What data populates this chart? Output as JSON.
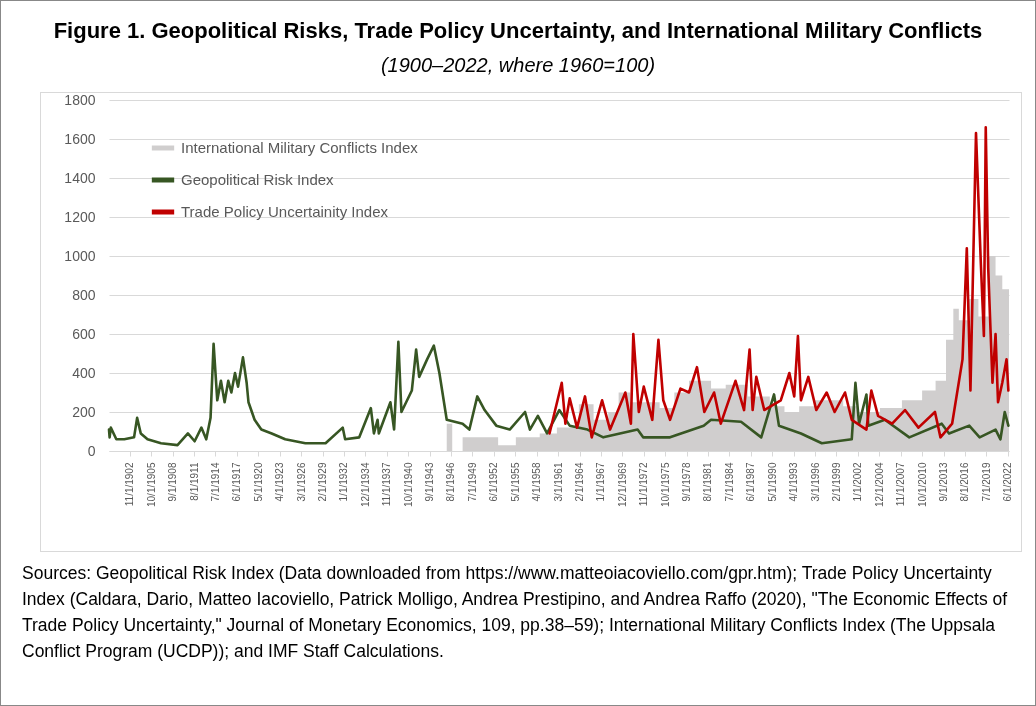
{
  "chart_data": {
    "type": "line",
    "title": "Figure 1. Geopolitical Risks, Trade Policy Uncertainty, and International Military Conflicts",
    "subtitle": "(1900–2022, where 1960=100)",
    "annotations": [
      "Sources: Geopolitical Risk Index (Data downloaded from https://www.matteoiacoviello.com/gpr.htm); Trade Policy Uncertainty Index (Caldara, Dario, Matteo Iacoviello, Patrick Molligo, Andrea Prestipino, and Andrea Raffo (2020), \"The Economic Effects of Trade Policy Uncertainty,\" Journal of Monetary Economics, 109, pp.38–59); International Military Conflicts Index (The Uppsala Conflict Program (UCDP)); and IMF Staff Calculations."
    ],
    "xlim": [
      "1900-01",
      "2022-08"
    ],
    "ylim": [
      0,
      1800
    ],
    "yticks": [
      0,
      200,
      400,
      600,
      800,
      1000,
      1200,
      1400,
      1600,
      1800
    ],
    "xticks": [
      {
        "value": "1902-11-01",
        "label": "11/1/1902"
      },
      {
        "value": "1905-10-01",
        "label": "10/1/1905"
      },
      {
        "value": "1908-09-01",
        "label": "9/1/1908"
      },
      {
        "value": "1911-08-01",
        "label": "8/1/1911"
      },
      {
        "value": "1914-07-01",
        "label": "7/1/1914"
      },
      {
        "value": "1917-06-01",
        "label": "6/1/1917"
      },
      {
        "value": "1920-05-01",
        "label": "5/1/1920"
      },
      {
        "value": "1923-04-01",
        "label": "4/1/1923"
      },
      {
        "value": "1926-03-01",
        "label": "3/1/1926"
      },
      {
        "value": "1929-02-01",
        "label": "2/1/1929"
      },
      {
        "value": "1932-01-01",
        "label": "1/1/1932"
      },
      {
        "value": "1934-12-01",
        "label": "12/1/1934"
      },
      {
        "value": "1937-11-01",
        "label": "11/1/1937"
      },
      {
        "value": "1940-10-01",
        "label": "10/1/1940"
      },
      {
        "value": "1943-09-01",
        "label": "9/1/1943"
      },
      {
        "value": "1946-08-01",
        "label": "8/1/1946"
      },
      {
        "value": "1949-07-01",
        "label": "7/1/1949"
      },
      {
        "value": "1952-06-01",
        "label": "6/1/1952"
      },
      {
        "value": "1955-05-01",
        "label": "5/1/1955"
      },
      {
        "value": "1958-04-01",
        "label": "4/1/1958"
      },
      {
        "value": "1961-03-01",
        "label": "3/1/1961"
      },
      {
        "value": "1964-02-01",
        "label": "2/1/1964"
      },
      {
        "value": "1967-01-01",
        "label": "1/1/1967"
      },
      {
        "value": "1969-12-01",
        "label": "12/1/1969"
      },
      {
        "value": "1972-11-01",
        "label": "11/1/1972"
      },
      {
        "value": "1975-10-01",
        "label": "10/1/1975"
      },
      {
        "value": "1978-09-01",
        "label": "9/1/1978"
      },
      {
        "value": "1981-08-01",
        "label": "8/1/1981"
      },
      {
        "value": "1984-07-01",
        "label": "7/1/1984"
      },
      {
        "value": "1987-06-01",
        "label": "6/1/1987"
      },
      {
        "value": "1990-05-01",
        "label": "5/1/1990"
      },
      {
        "value": "1993-04-01",
        "label": "4/1/1993"
      },
      {
        "value": "1996-03-01",
        "label": "3/1/1996"
      },
      {
        "value": "1999-02-01",
        "label": "2/1/1999"
      },
      {
        "value": "2002-01-01",
        "label": "1/1/2002"
      },
      {
        "value": "2004-12-01",
        "label": "12/1/2004"
      },
      {
        "value": "2007-11-01",
        "label": "11/1/2007"
      },
      {
        "value": "2010-10-01",
        "label": "10/1/2010"
      },
      {
        "value": "2013-09-01",
        "label": "9/1/2013"
      },
      {
        "value": "2016-08-01",
        "label": "8/1/2016"
      },
      {
        "value": "2019-07-01",
        "label": "7/1/2019"
      },
      {
        "value": "2022-06-01",
        "label": "6/1/2022"
      }
    ],
    "grid": "y",
    "legend": "top left",
    "series": [
      {
        "name": "International Military Conflicts Index",
        "type": "area",
        "color": "#d0cece",
        "x": [
          "1946-01",
          "1946-10",
          "1948-03",
          "1953-01",
          "1955-06",
          "1958-09",
          "1961-01",
          "1964-01",
          "1966-01",
          "1968-01",
          "1969-06",
          "1971-01",
          "1975-01",
          "1977-01",
          "1979-01",
          "1982-01",
          "1984-01",
          "1987-01",
          "1990-01",
          "1992-01",
          "1994-01",
          "1996-01",
          "2000-01",
          "2002-01",
          "2005-01",
          "2008-01",
          "2010-10",
          "2012-08",
          "2014-01",
          "2015-01",
          "2015-10",
          "2017-03",
          "2018-06",
          "2019-11",
          "2020-10",
          "2021-09",
          "2022-08"
        ],
        "values": [
          140,
          0,
          70,
          30,
          70,
          90,
          120,
          240,
          160,
          200,
          300,
          250,
          220,
          300,
          360,
          320,
          340,
          280,
          230,
          200,
          230,
          260,
          230,
          200,
          220,
          260,
          310,
          360,
          570,
          730,
          670,
          780,
          690,
          1000,
          900,
          830,
          830
        ]
      },
      {
        "name": "Geopolitical Risk Index",
        "color": "#375623",
        "x": [
          "1900-01",
          "1900-02",
          "1900-04",
          "1901-01",
          "1902-02",
          "1903-06",
          "1903-11",
          "1904-05",
          "1905-04",
          "1907-02",
          "1909-05",
          "1910-10",
          "1911-09",
          "1912-08",
          "1913-04",
          "1913-11",
          "1914-04",
          "1914-10",
          "1915-04",
          "1915-10",
          "1916-04",
          "1916-09",
          "1917-03",
          "1917-08",
          "1918-04",
          "1918-10",
          "1919-01",
          "1919-11",
          "1920-10",
          "1922-03",
          "1924-01",
          "1926-10",
          "1929-07",
          "1931-11",
          "1932-03",
          "1934-02",
          "1935-09",
          "1936-02",
          "1936-08",
          "1936-10",
          "1938-05",
          "1938-11",
          "1939-06",
          "1939-11",
          "1941-04",
          "1941-11",
          "1942-04",
          "1943-05",
          "1944-04",
          "1945-01",
          "1946-01",
          "1948-03",
          "1949-02",
          "1950-03",
          "1951-03",
          "1952-10",
          "1954-08",
          "1956-09",
          "1957-05",
          "1958-06",
          "1959-09",
          "1961-05",
          "1962-10",
          "1965-03",
          "1967-05",
          "1972-01",
          "1972-10",
          "1976-06",
          "1981-01",
          "1982-01",
          "1986-02",
          "1988-11",
          "1990-08",
          "1991-04",
          "1994-04",
          "1997-02",
          "2001-03",
          "2001-09",
          "2002-03",
          "2003-03",
          "2003-06",
          "2005-09",
          "2009-01",
          "2013-06",
          "2014-06",
          "2017-03",
          "2018-08",
          "2020-10",
          "2021-06",
          "2022-01",
          "2022-07"
        ],
        "values": [
          110,
          70,
          120,
          60,
          60,
          70,
          170,
          90,
          60,
          40,
          30,
          90,
          50,
          120,
          60,
          170,
          550,
          260,
          360,
          250,
          360,
          300,
          400,
          330,
          480,
          350,
          250,
          160,
          110,
          90,
          60,
          40,
          40,
          120,
          60,
          70,
          220,
          90,
          160,
          90,
          250,
          110,
          560,
          200,
          310,
          520,
          380,
          470,
          540,
          400,
          160,
          140,
          110,
          280,
          210,
          130,
          110,
          200,
          110,
          180,
          90,
          210,
          130,
          110,
          70,
          110,
          70,
          70,
          130,
          160,
          150,
          70,
          290,
          130,
          90,
          40,
          60,
          350,
          140,
          290,
          130,
          160,
          70,
          140,
          90,
          130,
          70,
          110,
          60,
          200,
          130
        ]
      },
      {
        "name": "Trade Policy Uncertainity Index",
        "color": "#c00000",
        "x": [
          "1960-01",
          "1961-09",
          "1962-03",
          "1962-10",
          "1963-10",
          "1964-11",
          "1965-10",
          "1967-03",
          "1968-04",
          "1970-05",
          "1971-02",
          "1971-06",
          "1972-03",
          "1972-11",
          "1974-01",
          "1974-11",
          "1975-07",
          "1976-06",
          "1977-11",
          "1979-01",
          "1980-02",
          "1981-02",
          "1982-06",
          "1983-05",
          "1985-05",
          "1986-07",
          "1987-04",
          "1987-09",
          "1988-03",
          "1989-04",
          "1991-07",
          "1992-09",
          "1993-05",
          "1993-11",
          "1994-04",
          "1995-04",
          "1996-05",
          "1997-10",
          "1998-11",
          "2000-04",
          "2001-03",
          "2003-03",
          "2003-11",
          "2004-10",
          "2006-09",
          "2008-06",
          "2010-04",
          "2012-07",
          "2013-04",
          "2014-11",
          "2016-04",
          "2016-11",
          "2017-05",
          "2018-02",
          "2018-10",
          "2019-03",
          "2019-06",
          "2019-10",
          "2020-05",
          "2020-10",
          "2021-02",
          "2021-09",
          "2022-04",
          "2022-07"
        ],
        "values": [
          90,
          350,
          140,
          270,
          120,
          280,
          70,
          260,
          110,
          300,
          140,
          600,
          200,
          330,
          160,
          570,
          260,
          160,
          320,
          300,
          430,
          200,
          300,
          140,
          360,
          210,
          520,
          210,
          380,
          210,
          260,
          400,
          280,
          590,
          260,
          380,
          210,
          300,
          200,
          300,
          160,
          110,
          310,
          180,
          140,
          210,
          120,
          200,
          70,
          140,
          470,
          1040,
          310,
          1630,
          960,
          590,
          1660,
          940,
          350,
          600,
          250,
          350,
          470,
          310
        ]
      }
    ]
  }
}
